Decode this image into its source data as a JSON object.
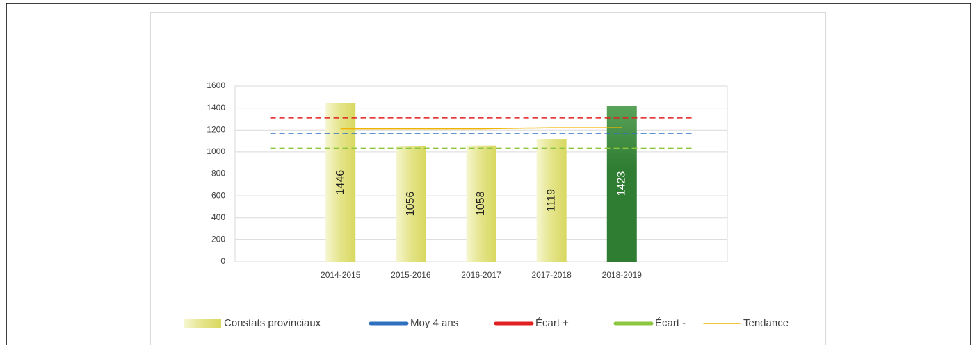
{
  "chart_data": {
    "type": "bar",
    "categories": [
      null,
      "2014-2015",
      "2015-2016",
      "2016-2017",
      "2017-2018",
      "2018-2019",
      null
    ],
    "series": [
      {
        "name": "Constats provinciaux",
        "type": "bar",
        "color": "#e4e48a",
        "colors": [
          null,
          "#e4e48a",
          "#e4e48a",
          "#e4e48a",
          "#e4e48a",
          "#2e7d32",
          null
        ],
        "values": [
          null,
          1446,
          1056,
          1058,
          1119,
          1423,
          null
        ]
      },
      {
        "name": "Moy 4 ans",
        "type": "line",
        "dash": true,
        "color": "#2e6fc0",
        "values": [
          1170,
          1170,
          1170,
          1170,
          1170,
          1170,
          1170
        ]
      },
      {
        "name": "Écart +",
        "type": "line",
        "dash": true,
        "color": "#e02020",
        "values": [
          1310,
          1310,
          1310,
          1310,
          1310,
          1310,
          1310
        ]
      },
      {
        "name": "Écart -",
        "type": "line",
        "dash": true,
        "color": "#8cc63f",
        "values": [
          1035,
          1035,
          1035,
          1035,
          1035,
          1035,
          1035
        ]
      },
      {
        "name": "Tendance",
        "type": "line",
        "dash": false,
        "color": "#f0b400",
        "values": [
          null,
          1210,
          1210,
          1210,
          1220,
          1220,
          null
        ]
      }
    ],
    "ylim": [
      0,
      1600
    ],
    "yticks": [
      0,
      200,
      400,
      600,
      800,
      1000,
      1200,
      1400,
      1600
    ],
    "grid": true,
    "legend": "bottom"
  }
}
